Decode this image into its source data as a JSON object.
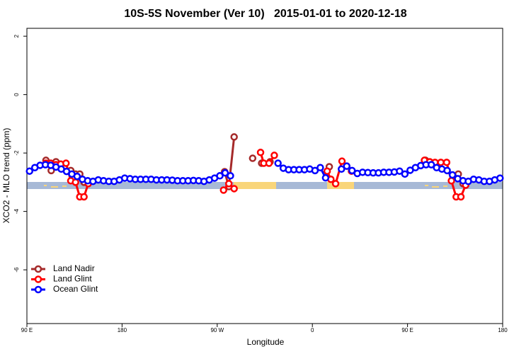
{
  "chart_data": {
    "type": "line",
    "title": "10S-5S November (Ver 10)   2015-01-01 to 2020-12-18",
    "xlabel": "Longitude",
    "ylabel": "XCO2 - MLO trend (ppm)",
    "xlim": [
      90,
      540
    ],
    "ylim": [
      -7.84,
      2.27
    ],
    "xticks": [
      {
        "value": 90,
        "label": "90 E"
      },
      180,
      {
        "value": 270,
        "label": "90 W"
      },
      {
        "value": 360,
        "label": "0"
      },
      {
        "value": 450,
        "label": "90 E"
      },
      {
        "value": 540,
        "label": "180"
      }
    ],
    "yticks": [
      2,
      0,
      -2,
      -4,
      -6
    ],
    "legend": "bottom left",
    "series": [
      {
        "name": "Land Nadir",
        "color": "#a52a2a",
        "x": [
          108,
          113,
          117.5,
          122,
          null,
          131.5,
          136,
          140,
          144,
          null,
          277,
          281,
          286,
          null,
          303.5,
          null,
          312,
          320,
          null,
          376,
          null,
          467,
          472,
          476.5,
          null,
          498,
          502.5
        ],
        "values": [
          -2.25,
          -2.6,
          -2.3,
          -2.4,
          null,
          -2.6,
          -2.72,
          -2.72,
          -3.0,
          null,
          -2.64,
          -3.15,
          -1.45,
          null,
          -2.18,
          null,
          -2.35,
          -2.3,
          null,
          -2.47,
          null,
          -2.25,
          -2.35,
          -2.4,
          null,
          -2.72,
          -3.05
        ]
      },
      {
        "name": "Land Glint",
        "color": "#ff0000",
        "x": [
          108,
          112.5,
          117.5,
          122,
          127,
          131.5,
          136,
          140,
          144,
          148,
          null,
          276,
          281,
          286,
          null,
          311,
          314,
          319,
          324,
          null,
          374,
          377.5,
          382,
          388,
          392.5,
          397,
          null,
          466,
          471,
          476,
          481.5,
          487,
          491.5,
          496,
          500.5,
          505
        ],
        "values": [
          -2.35,
          -2.35,
          -2.4,
          -2.38,
          -2.35,
          -2.95,
          -3.0,
          -3.5,
          -3.5,
          -3.05,
          null,
          -3.27,
          -3.05,
          -3.22,
          null,
          -1.98,
          -2.35,
          -2.35,
          -2.08,
          null,
          -2.62,
          -2.9,
          -3.05,
          -2.28,
          -2.45,
          -2.62,
          null,
          -2.25,
          -2.3,
          -2.32,
          -2.32,
          -2.32,
          -2.95,
          -3.5,
          -3.5,
          -3.1
        ]
      },
      {
        "name": "Ocean Glint",
        "color": "#0000ff",
        "x": [
          92.5,
          97.5,
          102.5,
          107.5,
          112.5,
          117.5,
          122.5,
          127.5,
          132.5,
          137.5,
          142.5,
          147.5,
          152.5,
          157.5,
          162.5,
          167.5,
          172.5,
          177.5,
          182.5,
          187.5,
          192.5,
          197.5,
          202.5,
          207.5,
          212.5,
          217.5,
          222.5,
          227.5,
          232.5,
          237.5,
          242.5,
          247.5,
          252.5,
          257.5,
          262.5,
          267.5,
          272.5,
          277.5,
          282.5,
          null,
          327.5,
          332.5,
          337.5,
          342.5,
          347.5,
          352.5,
          357.5,
          362.5,
          367.5,
          372.5,
          null,
          387.5,
          392.5,
          397.5,
          402.5,
          407.5,
          412.5,
          417.5,
          422.5,
          427.5,
          432.5,
          437.5,
          442.5,
          447.5,
          452.5,
          457.5,
          462.5,
          467.5,
          472.5,
          477.5,
          482.5,
          487.5,
          492.5,
          497.5,
          502.5,
          507.5,
          512.5,
          517.5,
          522.5,
          527.5,
          532.5,
          537.5
        ],
        "values": [
          -2.62,
          -2.5,
          -2.42,
          -2.4,
          -2.42,
          -2.48,
          -2.55,
          -2.63,
          -2.72,
          -2.8,
          -2.9,
          -2.95,
          -2.97,
          -2.92,
          -2.95,
          -2.97,
          -2.97,
          -2.92,
          -2.86,
          -2.88,
          -2.9,
          -2.9,
          -2.9,
          -2.9,
          -2.92,
          -2.92,
          -2.92,
          -2.93,
          -2.95,
          -2.95,
          -2.95,
          -2.94,
          -2.95,
          -2.97,
          -2.92,
          -2.86,
          -2.78,
          -2.68,
          -2.78,
          null,
          -2.35,
          -2.52,
          -2.57,
          -2.57,
          -2.57,
          -2.57,
          -2.55,
          -2.6,
          -2.5,
          -2.85,
          null,
          -2.55,
          -2.45,
          -2.6,
          -2.7,
          -2.66,
          -2.67,
          -2.68,
          -2.68,
          -2.66,
          -2.66,
          -2.65,
          -2.62,
          -2.72,
          -2.59,
          -2.5,
          -2.43,
          -2.4,
          -2.4,
          -2.5,
          -2.55,
          -2.6,
          -2.75,
          -2.88,
          -2.95,
          -2.97,
          -2.9,
          -2.92,
          -2.97,
          -2.97,
          -2.92,
          -2.86
        ]
      }
    ]
  }
}
